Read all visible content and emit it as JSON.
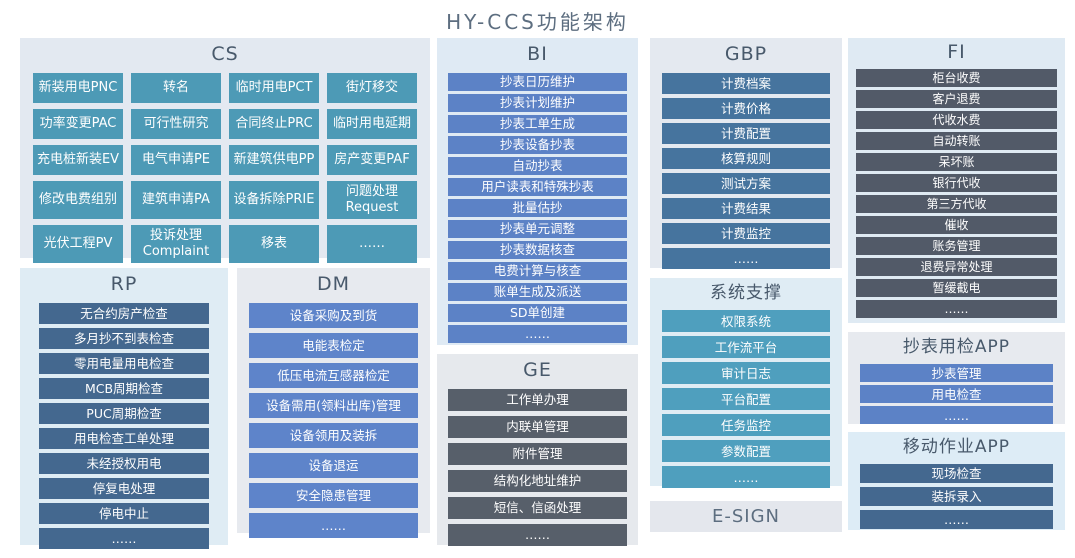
{
  "title": "HY-CCS功能架构",
  "colors": {
    "title_text": "#5d6e80",
    "panel_header_text": "#48596b",
    "cs_box": "#4d9ab6",
    "rp_box": "#44688f",
    "dm_box": "#5e84ca",
    "bi_box": "#5c82c6",
    "ge_box": "#575f6a",
    "gbp_box": "#46749e",
    "sys_box": "#4f9fbe",
    "fi_box": "#525a68",
    "meter_app_box": "#5c82c6",
    "mobile_app_box": "#44688f"
  },
  "panels": {
    "cs": {
      "title": "CS",
      "items": [
        "新装用电PNC",
        "转名",
        "临时用电PCT",
        "街灯移交",
        "功率变更PAC",
        "可行性研究",
        "合同终止PRC",
        "临时用电延期",
        "充电桩新装EV",
        "电气申请PE",
        "新建筑供电PP",
        "房产变更PAF",
        "修改电费组别",
        "建筑申请PA",
        "设备拆除PRIE",
        "问题处理\nRequest",
        "光伏工程PV",
        "投诉处理\nComplaint",
        "移表",
        "……"
      ]
    },
    "rp": {
      "title": "RP",
      "items": [
        "无合约房产检查",
        "多月抄不到表检查",
        "零用电量用电检查",
        "MCB周期检查",
        "PUC周期检查",
        "用电检查工单处理",
        "未经授权用电",
        "停复电处理",
        "停电中止",
        "……"
      ]
    },
    "dm": {
      "title": "DM",
      "items": [
        "设备采购及到货",
        "电能表检定",
        "低压电流互感器检定",
        "设备需用(领料出库)管理",
        "设备领用及装拆",
        "设备退运",
        "安全隐患管理",
        "……"
      ]
    },
    "bi": {
      "title": "BI",
      "items": [
        "抄表日历维护",
        "抄表计划维护",
        "抄表工单生成",
        "抄表设备抄表",
        "自动抄表",
        "用户读表和特殊抄表",
        "批量估抄",
        "抄表单元调整",
        "抄表数据核查",
        "电费计算与核查",
        "账单生成及派送",
        "SD单创建",
        "……"
      ]
    },
    "ge": {
      "title": "GE",
      "items": [
        "工作单办理",
        "内联单管理",
        "附件管理",
        "结构化地址维护",
        "短信、信函处理",
        "……"
      ]
    },
    "gbp": {
      "title": "GBP",
      "items": [
        "计费档案",
        "计费价格",
        "计费配置",
        "核算规则",
        "测试方案",
        "计费结果",
        "计费监控",
        "……"
      ]
    },
    "sys": {
      "title": "系统支撑",
      "items": [
        "权限系统",
        "工作流平台",
        "审计日志",
        "平台配置",
        "任务监控",
        "参数配置",
        "……"
      ]
    },
    "esign": {
      "title": "E-SIGN",
      "items": []
    },
    "fi": {
      "title": "FI",
      "items": [
        "柜台收费",
        "客户退费",
        "代收水费",
        "自动转账",
        "呆坏账",
        "银行代收",
        "第三方代收",
        "催收",
        "账务管理",
        "退费异常处理",
        "暂缓截电",
        "……"
      ]
    },
    "meter_app": {
      "title": "抄表用检APP",
      "items": [
        "抄表管理",
        "用电检查",
        "……"
      ]
    },
    "mobile_app": {
      "title": "移动作业APP",
      "items": [
        "现场检查",
        "装拆录入",
        "……"
      ]
    }
  }
}
